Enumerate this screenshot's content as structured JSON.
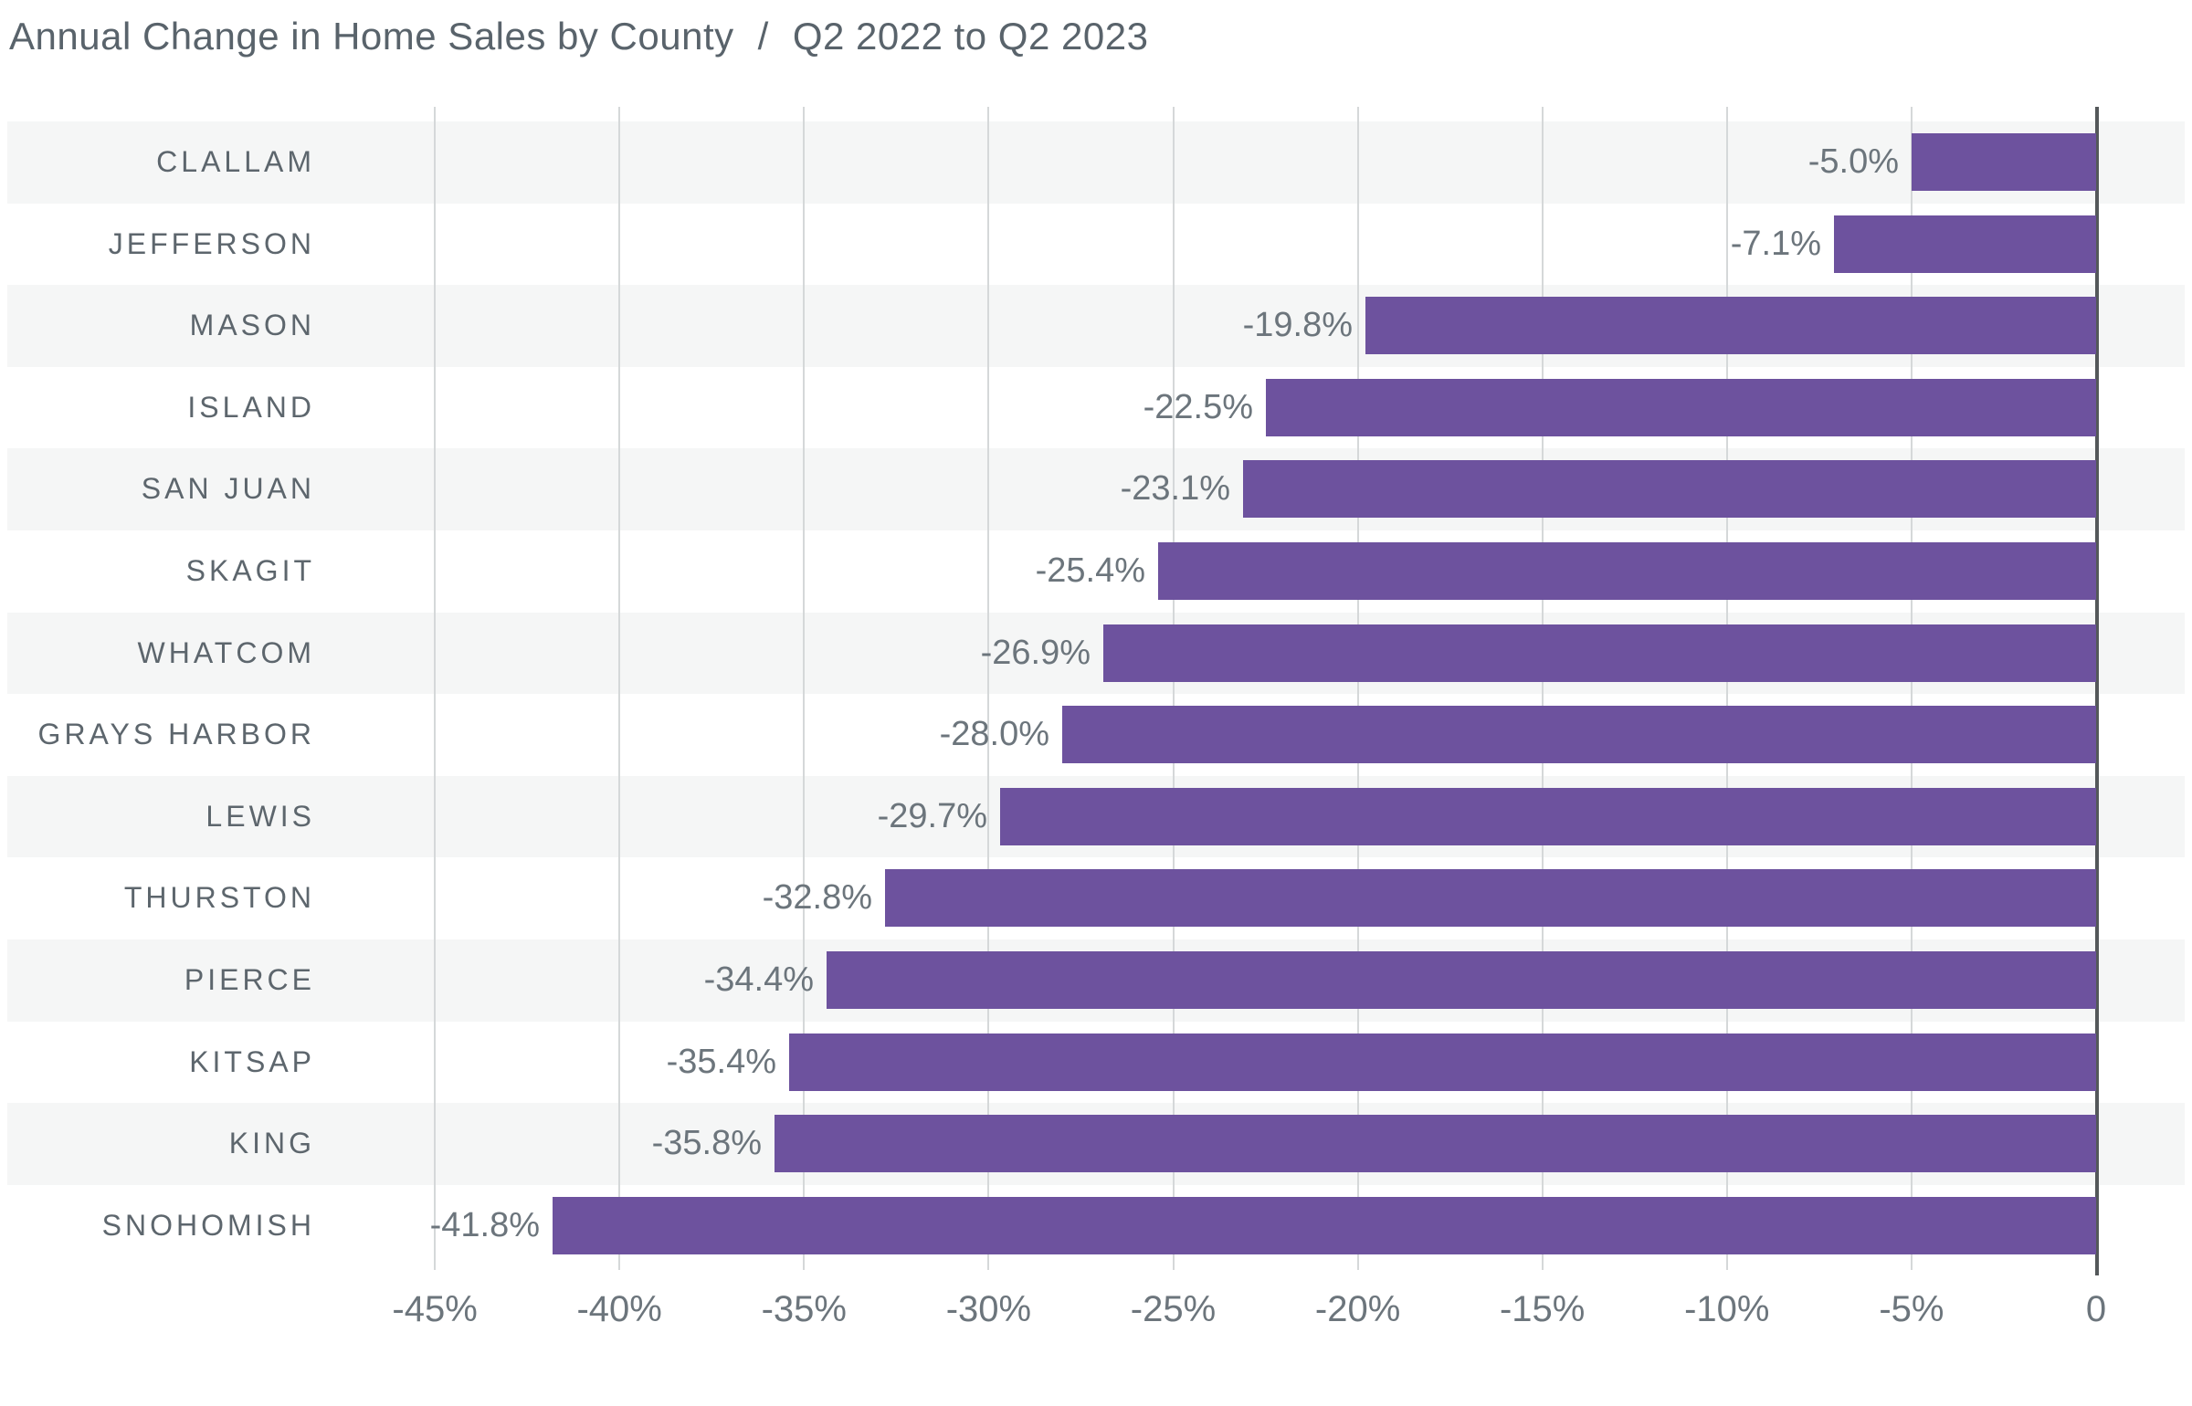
{
  "title": {
    "part1": "Annual Change in Home Sales by County",
    "separator": "/",
    "part2": "Q2 2022 to Q2 2023"
  },
  "chart_data": {
    "type": "bar",
    "orientation": "horizontal",
    "title": "Annual Change in Home Sales by County / Q2 2022 to Q2 2023",
    "xlabel": "",
    "ylabel": "",
    "categories": [
      "CLALLAM",
      "JEFFERSON",
      "MASON",
      "ISLAND",
      "SAN JUAN",
      "SKAGIT",
      "WHATCOM",
      "GRAYS HARBOR",
      "LEWIS",
      "THURSTON",
      "PIERCE",
      "KITSAP",
      "KING",
      "SNOHOMISH"
    ],
    "values": [
      -5.0,
      -7.1,
      -19.8,
      -22.5,
      -23.1,
      -25.4,
      -26.9,
      -28.0,
      -29.7,
      -32.8,
      -34.4,
      -35.4,
      -35.8,
      -41.8
    ],
    "value_labels": [
      "-5.0%",
      "-7.1%",
      "-19.8%",
      "-22.5%",
      "-23.1%",
      "-25.4%",
      "-26.9%",
      "-28.0%",
      "-29.7%",
      "-32.8%",
      "-34.4%",
      "-35.4%",
      "-35.8%",
      "-41.8%"
    ],
    "xlim": [
      -45,
      0
    ],
    "x_ticks": [
      {
        "value": -45,
        "label": "-45%"
      },
      {
        "value": -40,
        "label": "-40%"
      },
      {
        "value": -35,
        "label": "-35%"
      },
      {
        "value": -30,
        "label": "-30%"
      },
      {
        "value": -25,
        "label": "-25%"
      },
      {
        "value": -20,
        "label": "-20%"
      },
      {
        "value": -15,
        "label": "-15%"
      },
      {
        "value": -10,
        "label": "-10%"
      },
      {
        "value": -5,
        "label": "-5%"
      },
      {
        "value": 0,
        "label": "0"
      }
    ],
    "grid": "vertical-gridlines-on",
    "legend": "none",
    "row_striping": "alternate",
    "colors": {
      "bar": "#6d529e",
      "row_stripe": "#f5f6f6",
      "gridline": "#d5d8d9",
      "zero_axis": "#54585a",
      "title_text": "#59636b",
      "category_text": "#5d666d",
      "value_text": "#6c757c",
      "tick_text": "#6c757c",
      "background": "#ffffff"
    }
  }
}
